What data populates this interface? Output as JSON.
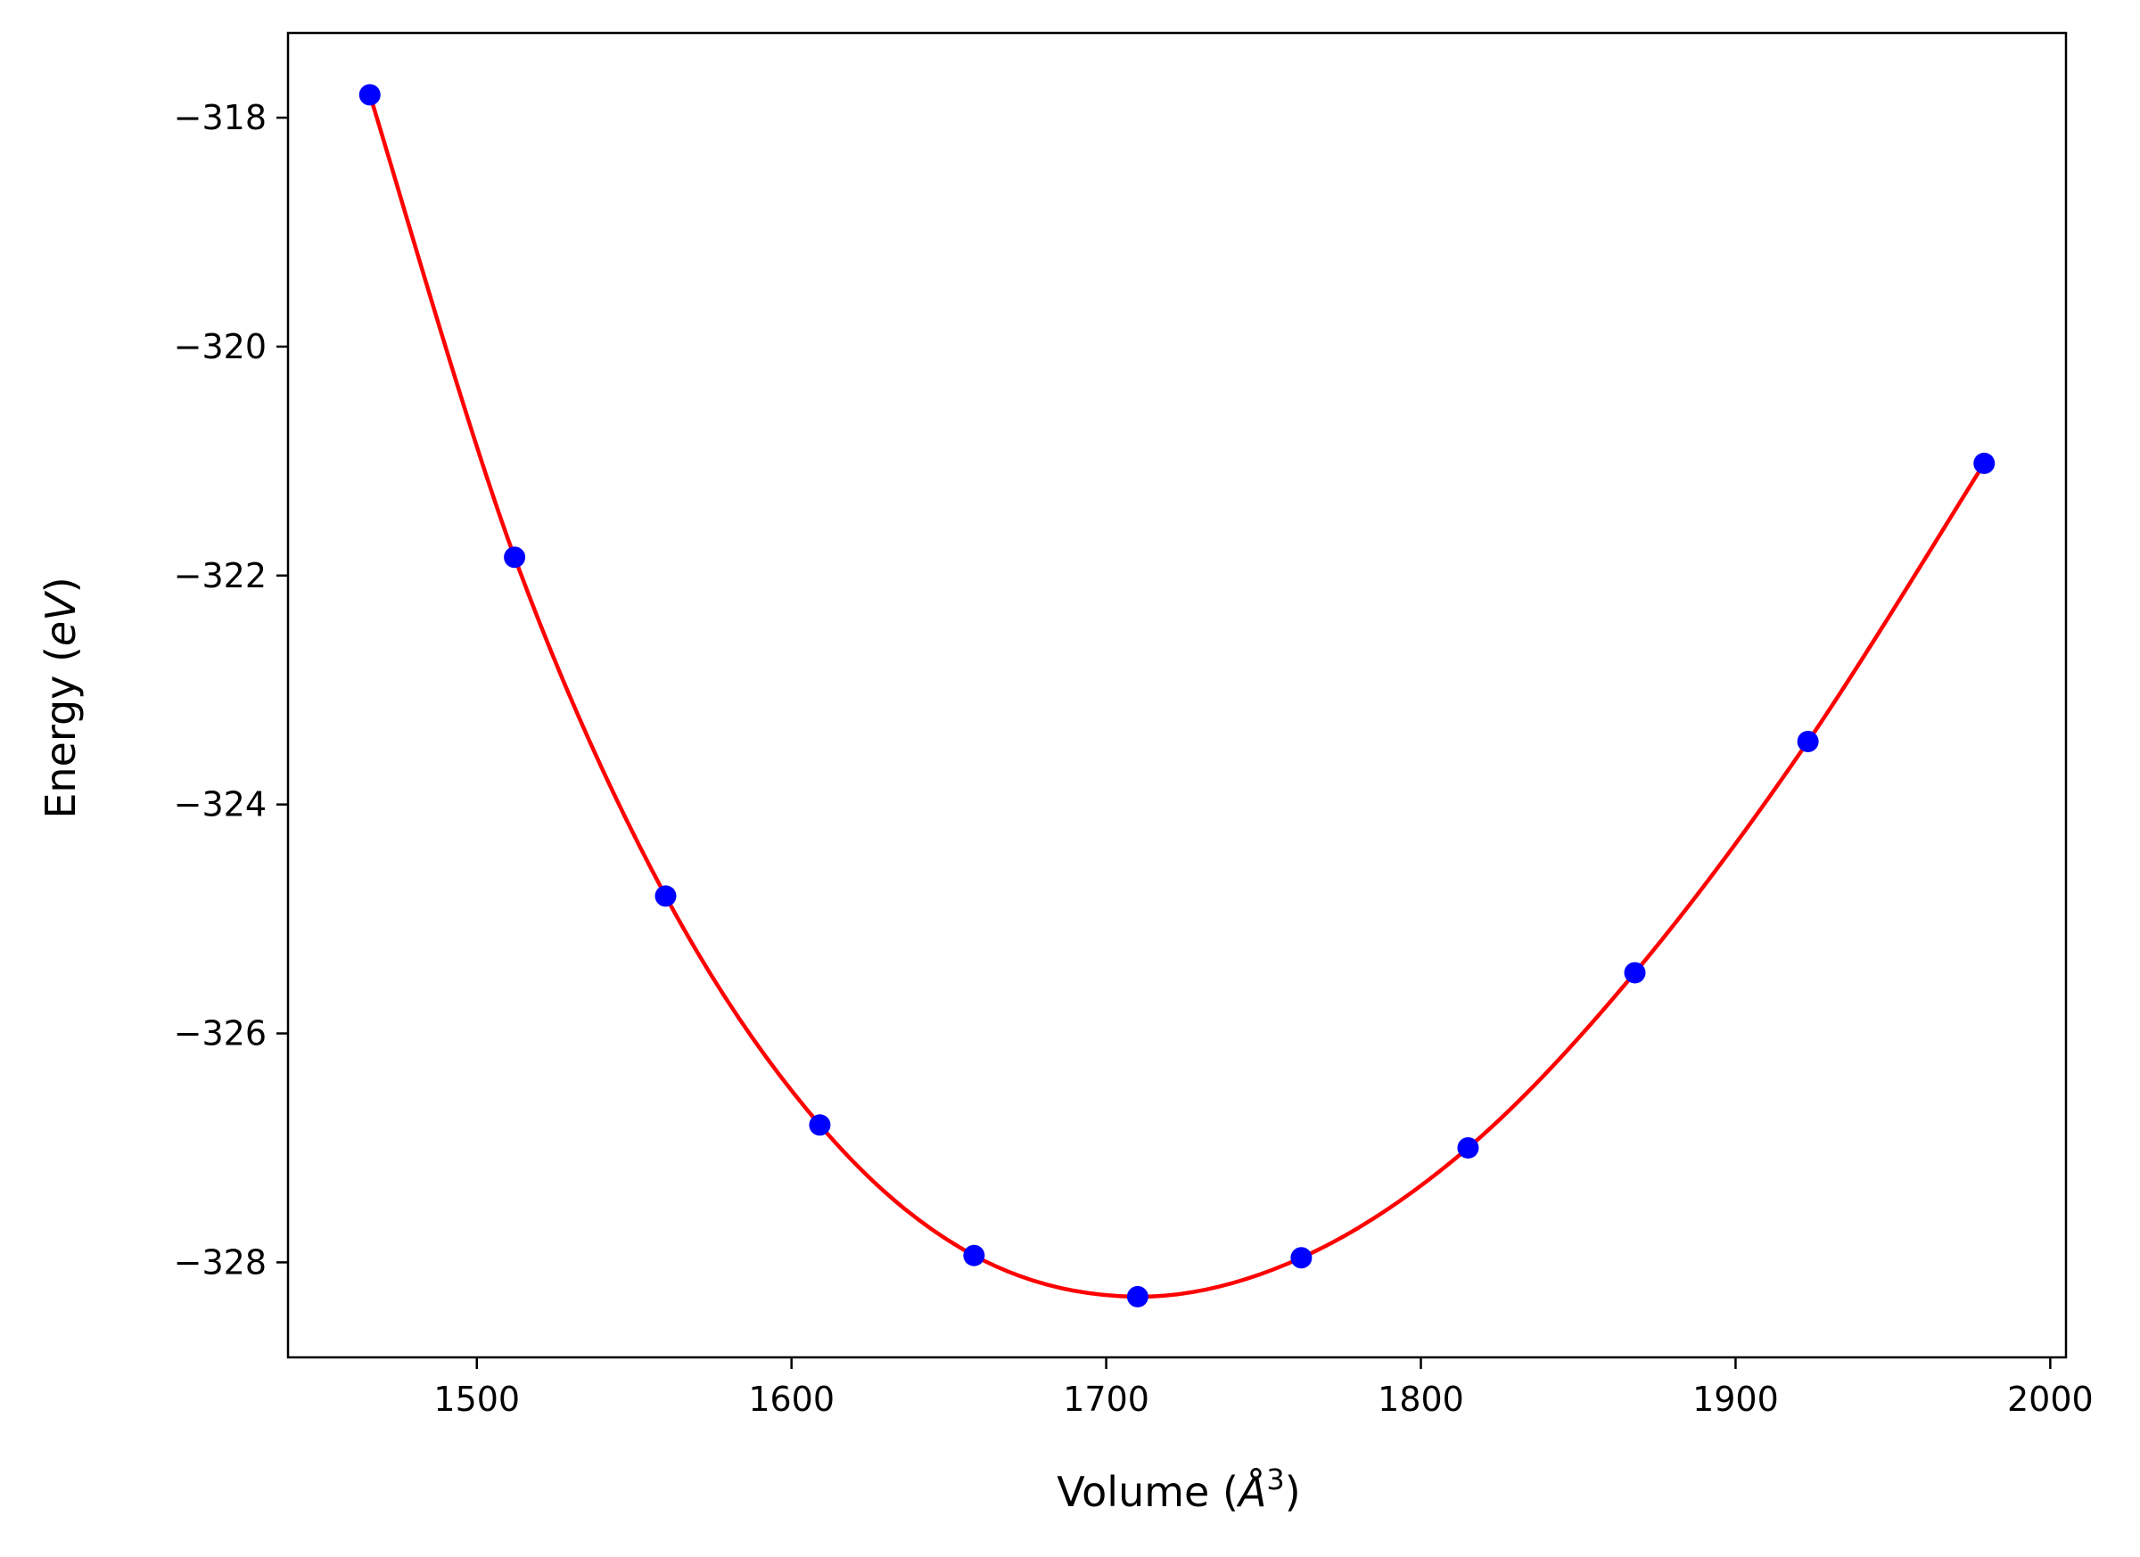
{
  "chart_data": {
    "type": "scatter",
    "title": "",
    "xlabel": "Volume",
    "xlabel_unit": "Å",
    "xlabel_unit_exp": "3",
    "ylabel": "Energy",
    "ylabel_unit": "eV",
    "xlim": [
      1440,
      2005
    ],
    "ylim": [
      -328.83,
      -317.26
    ],
    "xticks": [
      1500,
      1600,
      1700,
      1800,
      1900,
      2000
    ],
    "yticks": [
      -318,
      -320,
      -322,
      -324,
      -326,
      -328
    ],
    "xtick_labels": [
      "1500",
      "1600",
      "1700",
      "1800",
      "1900",
      "2000"
    ],
    "ytick_labels": [
      "−318",
      "−320",
      "−322",
      "−324",
      "−326",
      "−328"
    ],
    "grid": false,
    "series": [
      {
        "kind": "points",
        "color": "#0000ff",
        "x": [
          1466,
          1512,
          1560,
          1609,
          1658,
          1710,
          1762,
          1815,
          1868,
          1923,
          1979
        ],
        "y": [
          -317.8,
          -321.84,
          -324.8,
          -326.8,
          -327.94,
          -328.3,
          -327.96,
          -327.0,
          -325.47,
          -323.45,
          -321.02
        ]
      },
      {
        "kind": "fit-curve",
        "color": "#ff0000"
      }
    ]
  }
}
